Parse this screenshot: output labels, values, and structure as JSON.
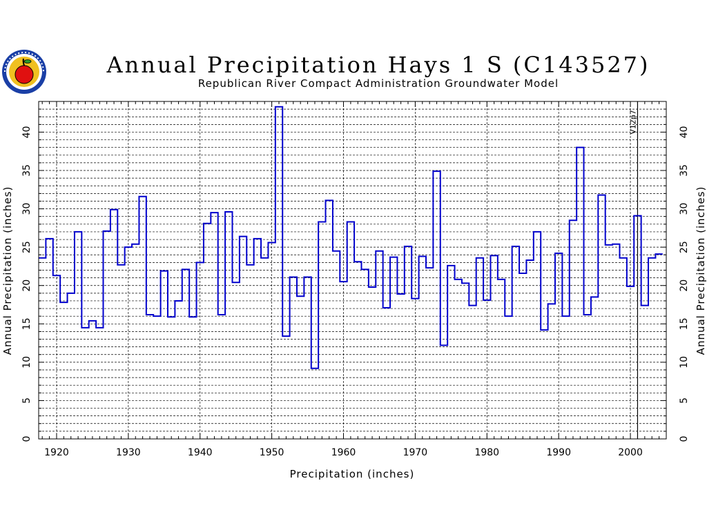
{
  "colors": {
    "series": "#0000cc",
    "frame": "#000000",
    "grid": "#000000",
    "logo_ring": "#1a3fa6",
    "logo_fill": "#f0c020",
    "apple": "#e01010"
  },
  "logo_icon": "apple-seal-logo",
  "chart_data": {
    "type": "line",
    "step": true,
    "title": "Annual Precipitation Hays 1 S (C143527)",
    "subtitle": "Republican River Compact Administration Groundwater Model",
    "xlabel": "Precipitation (inches)",
    "ylabel": "Annual Precipitation (inches)",
    "xlim": [
      1917.5,
      2005
    ],
    "ylim": [
      0,
      44
    ],
    "xticks": [
      1920,
      1930,
      1940,
      1950,
      1960,
      1970,
      1980,
      1990,
      2000
    ],
    "yticks": [
      0,
      5,
      10,
      15,
      20,
      25,
      30,
      35,
      40
    ],
    "grid": true,
    "annotations": [
      {
        "x": 2001,
        "text": "V12p7"
      }
    ],
    "x": [
      1918,
      1919,
      1920,
      1921,
      1922,
      1923,
      1924,
      1925,
      1926,
      1927,
      1928,
      1929,
      1930,
      1931,
      1932,
      1933,
      1934,
      1935,
      1936,
      1937,
      1938,
      1939,
      1940,
      1941,
      1942,
      1943,
      1944,
      1945,
      1946,
      1947,
      1948,
      1949,
      1950,
      1951,
      1952,
      1953,
      1954,
      1955,
      1956,
      1957,
      1958,
      1959,
      1960,
      1961,
      1962,
      1963,
      1964,
      1965,
      1966,
      1967,
      1968,
      1969,
      1970,
      1971,
      1972,
      1973,
      1974,
      1975,
      1976,
      1977,
      1978,
      1979,
      1980,
      1981,
      1982,
      1983,
      1984,
      1985,
      1986,
      1987,
      1988,
      1989,
      1990,
      1991,
      1992,
      1993,
      1994,
      1995,
      1996,
      1997,
      1998,
      1999,
      2000,
      2001,
      2002,
      2003,
      2004
    ],
    "values": [
      23.6,
      26.1,
      21.3,
      17.8,
      19.0,
      27.0,
      14.5,
      15.4,
      14.5,
      27.1,
      29.9,
      22.7,
      25.0,
      25.4,
      31.6,
      16.2,
      16.0,
      21.9,
      15.9,
      18.0,
      22.1,
      15.9,
      23.0,
      28.1,
      29.5,
      16.2,
      29.6,
      20.4,
      26.4,
      22.7,
      26.1,
      23.6,
      25.6,
      43.3,
      13.4,
      21.1,
      18.6,
      21.1,
      9.2,
      28.3,
      31.1,
      24.5,
      20.5,
      28.3,
      23.1,
      22.1,
      19.8,
      24.5,
      17.1,
      23.7,
      18.9,
      25.1,
      18.3,
      23.8,
      22.3,
      34.9,
      12.2,
      22.6,
      20.8,
      20.3,
      17.4,
      23.6,
      18.1,
      23.9,
      20.8,
      16.0,
      25.1,
      21.6,
      23.3,
      27.0,
      14.2,
      17.6,
      24.2,
      16.0,
      28.5,
      38.0,
      16.2,
      18.5,
      31.8,
      25.3,
      25.4,
      23.6,
      19.9,
      29.1,
      17.4,
      23.6,
      24.1
    ]
  }
}
